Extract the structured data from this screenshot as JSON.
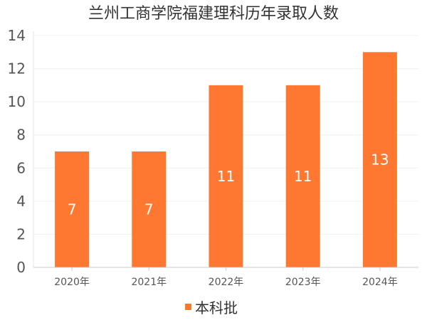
{
  "chart_data": {
    "type": "bar",
    "title": "兰州工商学院福建理科历年录取人数",
    "categories": [
      "2020年",
      "2021年",
      "2022年",
      "2023年",
      "2024年"
    ],
    "series": [
      {
        "name": "本科批",
        "values": [
          7,
          7,
          11,
          11,
          13
        ],
        "color": "#FF7831"
      }
    ],
    "ylim": [
      0,
      14
    ],
    "yticks": [
      0,
      2,
      4,
      6,
      8,
      10,
      12,
      14
    ],
    "xlabel": "",
    "ylabel": "",
    "grid": true,
    "legend": "bottom-center",
    "data_labels": true
  }
}
